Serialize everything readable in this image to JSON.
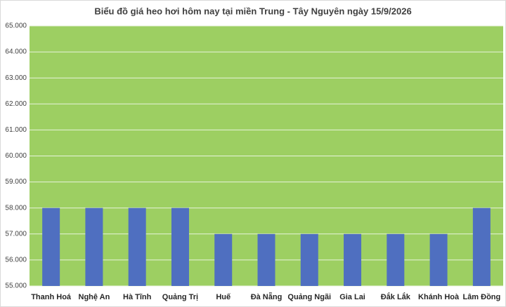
{
  "chart_data": {
    "type": "bar",
    "title": "Biểu đồ giá heo hơi hôm nay tại miền Trung - Tây Nguyên ngày 15/9/2026",
    "categories": [
      "Thanh Hoá",
      "Nghệ An",
      "Hà Tĩnh",
      "Quảng Trị",
      "Huế",
      "Đà Nẵng",
      "Quảng Ngãi",
      "Gia Lai",
      "Đắk Lắk",
      "Khánh Hoà",
      "Lâm Đồng"
    ],
    "values": [
      58000,
      58000,
      58000,
      58000,
      57000,
      57000,
      57000,
      57000,
      57000,
      57000,
      58000
    ],
    "color": "#4f6fc0",
    "ylim": [
      55000,
      65000
    ],
    "yticks": [
      {
        "value": 55000,
        "label": "55.000"
      },
      {
        "value": 56000,
        "label": "56.000"
      },
      {
        "value": 57000,
        "label": "57.000"
      },
      {
        "value": 58000,
        "label": "58.000"
      },
      {
        "value": 59000,
        "label": "59.000"
      },
      {
        "value": 60000,
        "label": "60.000"
      },
      {
        "value": 61000,
        "label": "61.000"
      },
      {
        "value": 62000,
        "label": "62.000"
      },
      {
        "value": 63000,
        "label": "63.000"
      },
      {
        "value": 64000,
        "label": "64.000"
      },
      {
        "value": 65000,
        "label": "65.000"
      }
    ],
    "grid": true
  }
}
